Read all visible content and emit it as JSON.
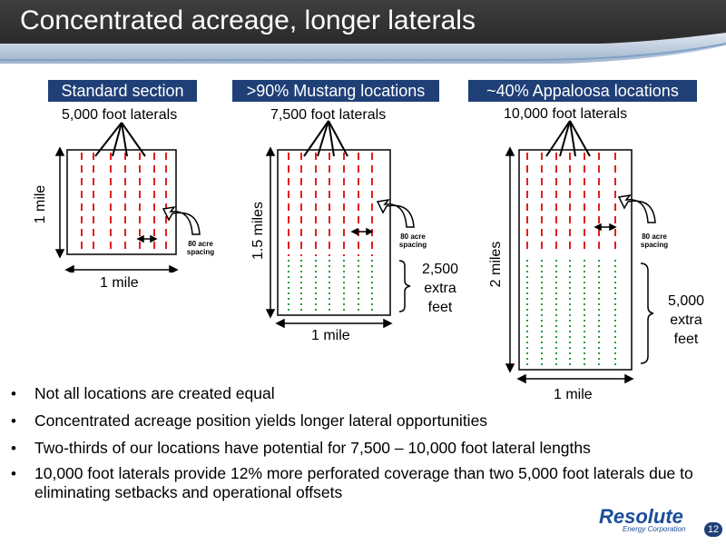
{
  "title": "Concentrated acreage, longer laterals",
  "panels": [
    {
      "box_label": "Standard section",
      "laterals_label": "5,000 foot laterals",
      "side_label": "1 mile",
      "bottom_label": "1 mile",
      "spacing_label_line1": "80 acre",
      "spacing_label_line2": "spacing"
    },
    {
      "box_label": ">90% Mustang locations",
      "laterals_label": "7,500 foot laterals",
      "side_label": "1.5 miles",
      "bottom_label": "1 mile",
      "spacing_label_line1": "80 acre",
      "spacing_label_line2": "spacing",
      "extra_line1": "2,500",
      "extra_line2": "extra",
      "extra_line3": "feet"
    },
    {
      "box_label": "~40% Appaloosa locations",
      "laterals_label": "10,000 foot laterals",
      "side_label": "2 miles",
      "bottom_label": "1 mile",
      "spacing_label_line1": "80 acre",
      "spacing_label_line2": "spacing",
      "extra_line1": "5,000",
      "extra_line2": "extra",
      "extra_line3": "feet"
    }
  ],
  "bullets": [
    "Not all locations are created equal",
    "Concentrated acreage position yields longer lateral opportunities",
    "Two-thirds of our locations have potential for 7,500 – 10,000 foot lateral lengths",
    "10,000 foot laterals provide 12% more perforated coverage than two 5,000 foot laterals due to eliminating setbacks and operational offsets"
  ],
  "logo": {
    "name": "Resolute",
    "sub": "Energy Corporation"
  },
  "page_number": "12",
  "colors": {
    "header": "#333333",
    "accent": "#1f3f77",
    "lateral_red": "#e02020",
    "lateral_green": "#2a9d3a"
  }
}
